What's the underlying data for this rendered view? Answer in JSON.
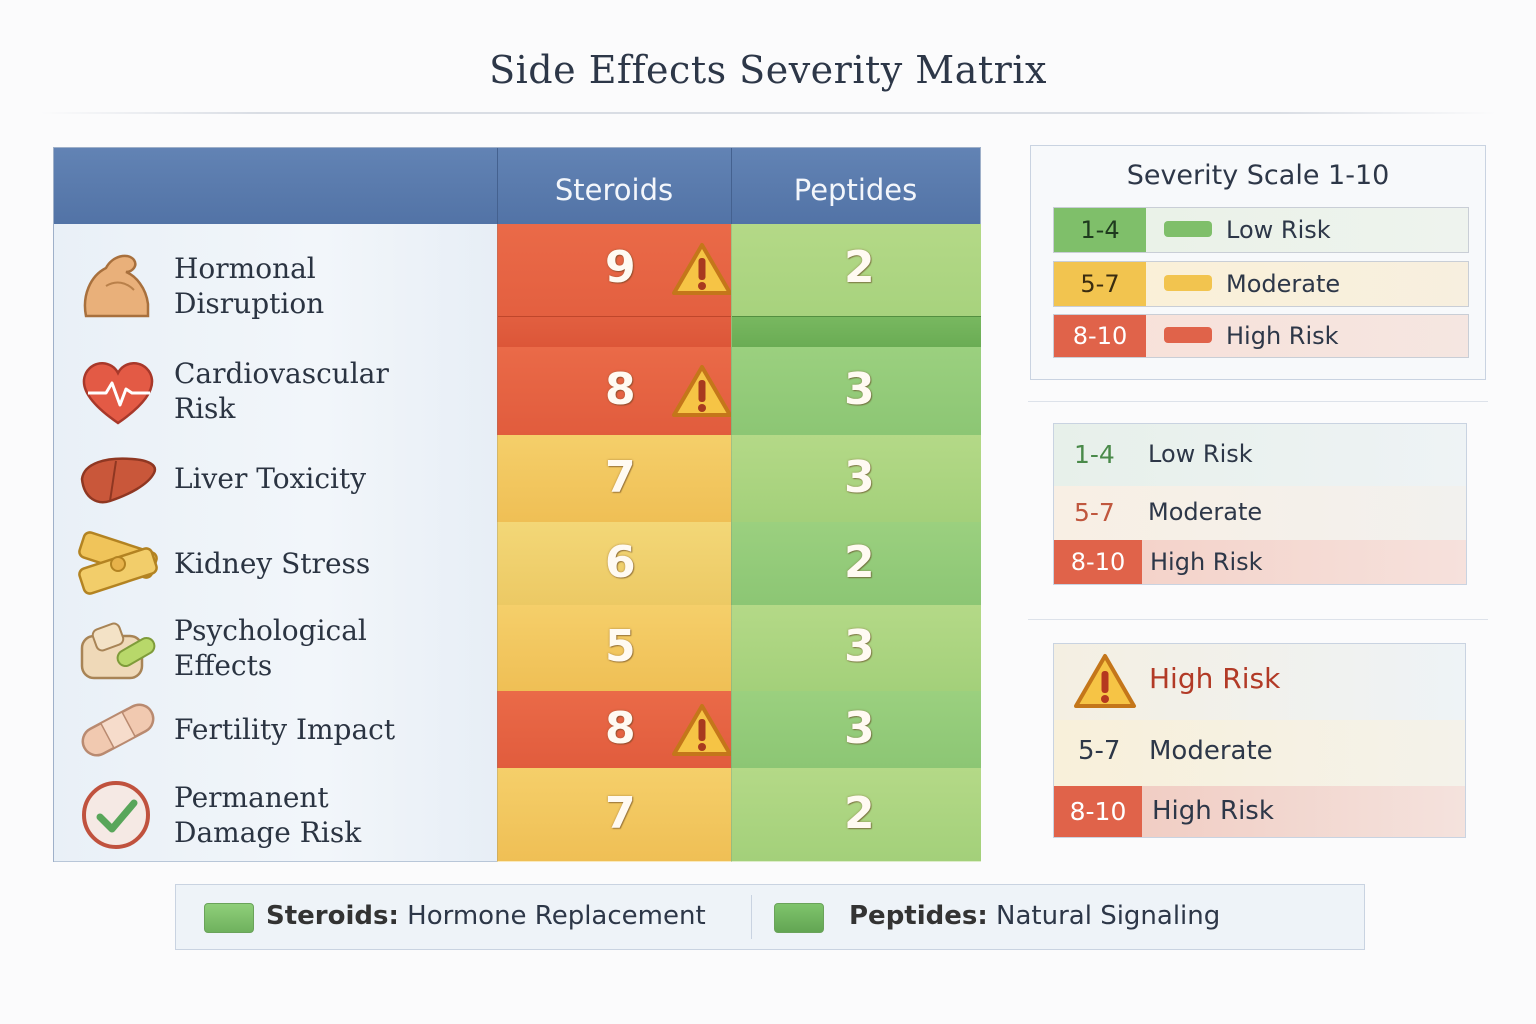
{
  "title": "Side Effects Severity Matrix",
  "chart_data": {
    "type": "table",
    "title": "Side Effects Severity Matrix",
    "columns": [
      "Steroids",
      "Peptides"
    ],
    "rows": [
      {
        "label": "Hormonal\nDisruption",
        "icon": "flexed-arm-icon",
        "steroids": 9,
        "peptides": 2,
        "warning": true
      },
      {
        "label": "Cardiovascular\nRisk",
        "icon": "heart-pulse-icon",
        "steroids": 8,
        "peptides": 3,
        "warning": true
      },
      {
        "label": "Liver Toxicity",
        "icon": "liver-icon",
        "steroids": 7,
        "peptides": 3,
        "warning": false
      },
      {
        "label": "Kidney Stress",
        "icon": "kidney-bandage-icon",
        "steroids": 6,
        "peptides": 2,
        "warning": false
      },
      {
        "label": "Psychological\nEffects",
        "icon": "brain-pills-icon",
        "steroids": 5,
        "peptides": 3,
        "warning": false
      },
      {
        "label": "Fertility Impact",
        "icon": "bandage-icon",
        "steroids": 8,
        "peptides": 3,
        "warning": true
      },
      {
        "label": "Permanent\nDamage Risk",
        "icon": "checkmark-circle-icon",
        "steroids": 7,
        "peptides": 2,
        "warning": false
      }
    ]
  },
  "legend_scale": {
    "title": "Severity Scale 1-10",
    "items": [
      {
        "range": "1-4",
        "label": "Low Risk",
        "color": "#7fbf6a"
      },
      {
        "range": "5-7",
        "label": "Moderate",
        "color": "#f2c44f"
      },
      {
        "range": "8-10",
        "label": "High Risk",
        "color": "#e0634a"
      }
    ]
  },
  "legend_secondary": {
    "items": [
      {
        "range": "1-4",
        "label": "Low Risk"
      },
      {
        "range": "5-7",
        "label": "Moderate"
      },
      {
        "range": "8-10",
        "label": "High Risk"
      }
    ]
  },
  "legend_tertiary": {
    "warning_label": "High Risk",
    "moderate_range": "5-7",
    "moderate_label": "Moderate",
    "high_range": "8-10",
    "high_label": "High Risk"
  },
  "bottom_legend": {
    "left_name": "Steroids:",
    "left_desc": " Hormone Replacement",
    "right_name": "Peptides:",
    "right_desc": " Natural Signaling"
  },
  "colors": {
    "high": "#e15c3d",
    "moderate": "#efbf55",
    "low": "#8cc674",
    "header": "#5a7aae"
  }
}
